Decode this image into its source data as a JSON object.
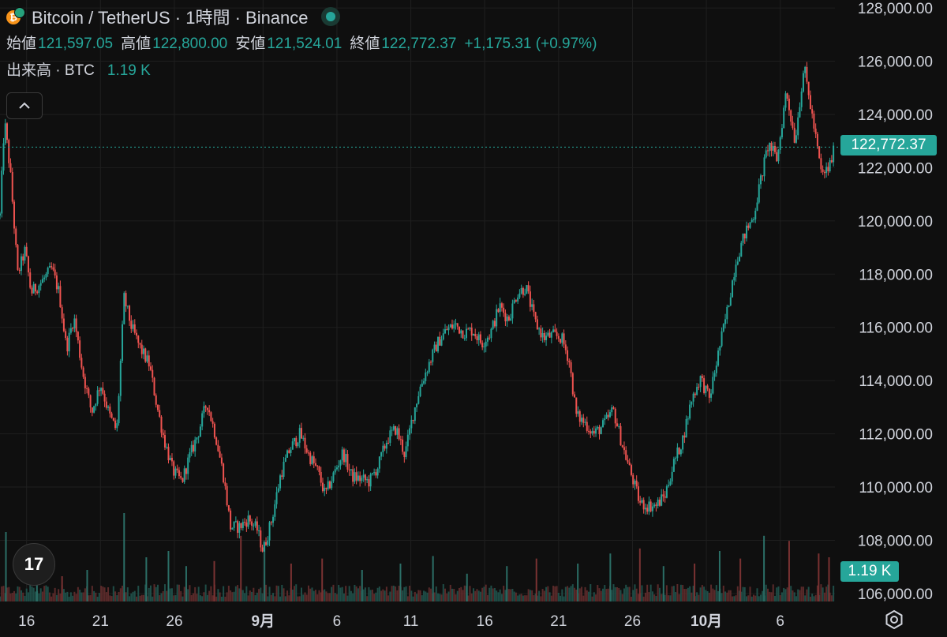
{
  "header": {
    "symbol_title": "Bitcoin / TetherUS · 1時間 · Binance",
    "open_label": "始値",
    "open_value": "121,597.05",
    "high_label": "高値",
    "high_value": "122,800.00",
    "low_label": "安値",
    "low_value": "121,524.01",
    "close_label": "終値",
    "close_value": "122,772.37",
    "change_value": "+1,175.31 (+0.97%)",
    "volume_label": "出来高 · BTC",
    "volume_value": "1.19 K"
  },
  "badges": {
    "last_price": "122,772.37",
    "last_volume": "1.19 K"
  },
  "logo": {
    "text": "17"
  },
  "colors": {
    "background": "#0f0f0f",
    "up": "#26a69a",
    "down": "#ef5350",
    "grid": "#1f1f1f",
    "text": "#d1d4dc"
  },
  "icons": [
    "bitcoin-icon",
    "tether-icon",
    "status-dot-icon",
    "chevron-up-icon",
    "tradingview-logo",
    "settings-icon"
  ],
  "chart_data": {
    "type": "candlestick",
    "title": "Bitcoin / TetherUS · 1時間 · Binance",
    "y_ticks": [
      "128,000.00",
      "126,000.00",
      "124,000.00",
      "122,000.00",
      "120,000.00",
      "118,000.00",
      "116,000.00",
      "114,000.00",
      "112,000.00",
      "110,000.00",
      "108,000.00",
      "106,000.00"
    ],
    "y_tick_values": [
      128000,
      126000,
      124000,
      122000,
      120000,
      118000,
      116000,
      114000,
      112000,
      110000,
      108000,
      106000
    ],
    "ylim": [
      105700,
      128300
    ],
    "x_ticks": [
      {
        "label": "16",
        "day": 16,
        "bold": false
      },
      {
        "label": "21",
        "day": 21,
        "bold": false
      },
      {
        "label": "26",
        "day": 26,
        "bold": false
      },
      {
        "label": "9月",
        "day": 32,
        "bold": true
      },
      {
        "label": "6",
        "day": 37,
        "bold": false
      },
      {
        "label": "11",
        "day": 42,
        "bold": false
      },
      {
        "label": "16",
        "day": 47,
        "bold": false
      },
      {
        "label": "21",
        "day": 52,
        "bold": false
      },
      {
        "label": "26",
        "day": 57,
        "bold": false
      },
      {
        "label": "10月",
        "day": 62,
        "bold": true
      },
      {
        "label": "6",
        "day": 67,
        "bold": false
      }
    ],
    "x_range": [
      14.2,
      70.7
    ],
    "last_price": 122772.37,
    "price_path": [
      [
        14.2,
        120200
      ],
      [
        14.5,
        123800
      ],
      [
        14.9,
        121800
      ],
      [
        15.4,
        118000
      ],
      [
        15.9,
        118900
      ],
      [
        16.3,
        117300
      ],
      [
        17.0,
        117700
      ],
      [
        17.7,
        118200
      ],
      [
        18.2,
        117300
      ],
      [
        18.7,
        115200
      ],
      [
        19.2,
        116400
      ],
      [
        19.8,
        114300
      ],
      [
        20.4,
        112800
      ],
      [
        21.0,
        113900
      ],
      [
        21.6,
        112700
      ],
      [
        22.1,
        112100
      ],
      [
        22.6,
        117100
      ],
      [
        23.1,
        116000
      ],
      [
        23.7,
        115200
      ],
      [
        24.3,
        114600
      ],
      [
        24.8,
        113100
      ],
      [
        25.3,
        111800
      ],
      [
        25.9,
        110600
      ],
      [
        26.5,
        110200
      ],
      [
        27.0,
        111100
      ],
      [
        27.6,
        112000
      ],
      [
        28.2,
        113200
      ],
      [
        28.8,
        111900
      ],
      [
        29.3,
        110500
      ],
      [
        29.8,
        108500
      ],
      [
        30.4,
        108500
      ],
      [
        31.0,
        108800
      ],
      [
        31.6,
        108400
      ],
      [
        32.0,
        107600
      ],
      [
        32.6,
        108800
      ],
      [
        33.2,
        110500
      ],
      [
        33.8,
        111400
      ],
      [
        34.5,
        112000
      ],
      [
        35.1,
        111200
      ],
      [
        35.7,
        110600
      ],
      [
        36.2,
        109700
      ],
      [
        36.8,
        110500
      ],
      [
        37.4,
        111300
      ],
      [
        38.0,
        110400
      ],
      [
        38.6,
        110300
      ],
      [
        39.2,
        110200
      ],
      [
        39.8,
        110800
      ],
      [
        40.4,
        111800
      ],
      [
        41.0,
        112200
      ],
      [
        41.6,
        111200
      ],
      [
        42.1,
        112600
      ],
      [
        42.6,
        113700
      ],
      [
        43.2,
        114600
      ],
      [
        43.8,
        115400
      ],
      [
        44.4,
        115900
      ],
      [
        45.0,
        116100
      ],
      [
        45.6,
        115800
      ],
      [
        46.2,
        115900
      ],
      [
        46.8,
        115400
      ],
      [
        47.4,
        115800
      ],
      [
        48.0,
        116800
      ],
      [
        48.6,
        116300
      ],
      [
        49.2,
        117300
      ],
      [
        49.8,
        117500
      ],
      [
        50.4,
        116200
      ],
      [
        51.0,
        115600
      ],
      [
        51.6,
        115700
      ],
      [
        52.2,
        115600
      ],
      [
        52.7,
        114800
      ],
      [
        53.2,
        112700
      ],
      [
        53.8,
        112400
      ],
      [
        54.4,
        112000
      ],
      [
        55.0,
        112300
      ],
      [
        55.7,
        112900
      ],
      [
        56.3,
        111600
      ],
      [
        56.9,
        110500
      ],
      [
        57.5,
        109400
      ],
      [
        58.0,
        109300
      ],
      [
        58.6,
        109300
      ],
      [
        59.2,
        109700
      ],
      [
        59.8,
        110900
      ],
      [
        60.4,
        111800
      ],
      [
        61.0,
        113300
      ],
      [
        61.6,
        114100
      ],
      [
        62.2,
        113300
      ],
      [
        62.8,
        115000
      ],
      [
        63.4,
        116600
      ],
      [
        64.0,
        118500
      ],
      [
        64.6,
        119500
      ],
      [
        65.2,
        120200
      ],
      [
        65.7,
        121600
      ],
      [
        66.2,
        122900
      ],
      [
        66.8,
        122300
      ],
      [
        67.4,
        124900
      ],
      [
        68.0,
        123000
      ],
      [
        68.6,
        125800
      ],
      [
        69.2,
        123800
      ],
      [
        69.8,
        121700
      ],
      [
        70.3,
        122000
      ],
      [
        70.7,
        122772
      ]
    ],
    "volume_spikes": [
      [
        14.6,
        0.55
      ],
      [
        16.7,
        0.3
      ],
      [
        18.4,
        0.2
      ],
      [
        20.1,
        0.25
      ],
      [
        22.6,
        0.7
      ],
      [
        24.1,
        0.35
      ],
      [
        25.6,
        0.4
      ],
      [
        26.8,
        0.28
      ],
      [
        28.7,
        0.32
      ],
      [
        30.5,
        0.52
      ],
      [
        32.1,
        0.45
      ],
      [
        33.9,
        0.3
      ],
      [
        36.0,
        0.34
      ],
      [
        38.7,
        0.25
      ],
      [
        41.3,
        0.3
      ],
      [
        43.5,
        0.36
      ],
      [
        45.8,
        0.22
      ],
      [
        48.5,
        0.28
      ],
      [
        50.5,
        0.34
      ],
      [
        53.3,
        0.3
      ],
      [
        55.5,
        0.38
      ],
      [
        57.5,
        0.42
      ],
      [
        59.1,
        0.28
      ],
      [
        61.2,
        0.3
      ],
      [
        62.9,
        0.4
      ],
      [
        64.3,
        0.34
      ],
      [
        65.9,
        0.52
      ],
      [
        67.6,
        0.48
      ],
      [
        69.6,
        0.38
      ],
      [
        70.3,
        0.35
      ]
    ]
  }
}
